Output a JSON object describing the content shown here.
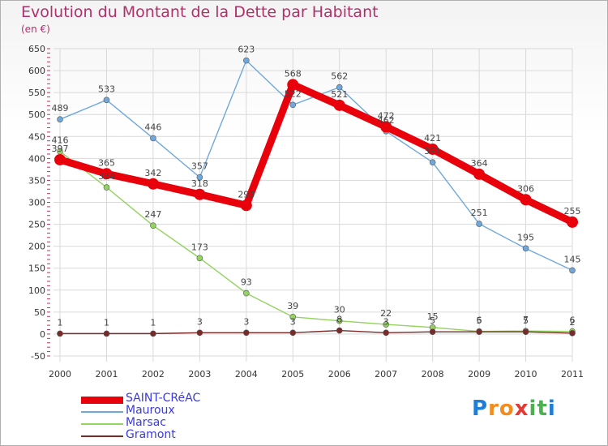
{
  "title": "Evolution du Montant de la Dette par Habitant",
  "subtitle": "(en €)",
  "logo": {
    "letters": [
      "P",
      "r",
      "o",
      "x",
      "i",
      "t",
      "i"
    ],
    "colors": [
      "#1e7fd6",
      "#f28c1c",
      "#f28c1c",
      "#e53935",
      "#4caf50",
      "#4caf50",
      "#1e7fd6"
    ]
  },
  "chart_data": {
    "type": "line",
    "title": "Evolution du Montant de la Dette par Habitant",
    "ylabel": "(en €)",
    "x": [
      "2000",
      "2001",
      "2002",
      "2003",
      "2004",
      "2005",
      "2006",
      "2007",
      "2008",
      "2009",
      "2010",
      "2011"
    ],
    "ylim": [
      -50,
      650
    ],
    "yticks": [
      "-50",
      "0",
      "50",
      "100",
      "150",
      "200",
      "250",
      "300",
      "350",
      "400",
      "450",
      "500",
      "550",
      "600",
      "650"
    ],
    "grid": true,
    "series": [
      {
        "name": "SAINT-CRéAC",
        "color": "#e8000b",
        "values": [
          397,
          365,
          342,
          318,
          293,
          568,
          521,
          472,
          421,
          364,
          306,
          255
        ]
      },
      {
        "name": "Mauroux",
        "color": "#6fa8dc",
        "values": [
          489,
          533,
          446,
          357,
          623,
          522,
          562,
          462,
          391,
          251,
          195,
          145
        ]
      },
      {
        "name": "Marsac",
        "color": "#93d35f",
        "values": [
          416,
          334,
          247,
          173,
          93,
          39,
          30,
          22,
          15,
          6,
          7,
          6
        ]
      },
      {
        "name": "Gramont",
        "color": "#7b2a2a",
        "values": [
          1,
          1,
          1,
          3,
          3,
          3,
          8,
          3,
          5,
          5,
          5,
          2
        ]
      }
    ],
    "labels": [
      [
        "397",
        "365",
        "342",
        "318",
        "293",
        "568",
        "521",
        "472",
        "421",
        "364",
        "306",
        "255"
      ],
      [
        "489",
        "533",
        "446",
        "357",
        "623",
        "522",
        "562",
        "462",
        "391",
        "251",
        "195",
        "145"
      ],
      [
        "416",
        "334",
        "247",
        "173",
        "93",
        "39",
        "30",
        "22",
        "15",
        "6",
        "7",
        "6"
      ],
      [
        "1",
        "1",
        "1",
        "3",
        "3",
        "3",
        "8",
        "3",
        "5",
        "5",
        "5",
        "2"
      ]
    ]
  }
}
